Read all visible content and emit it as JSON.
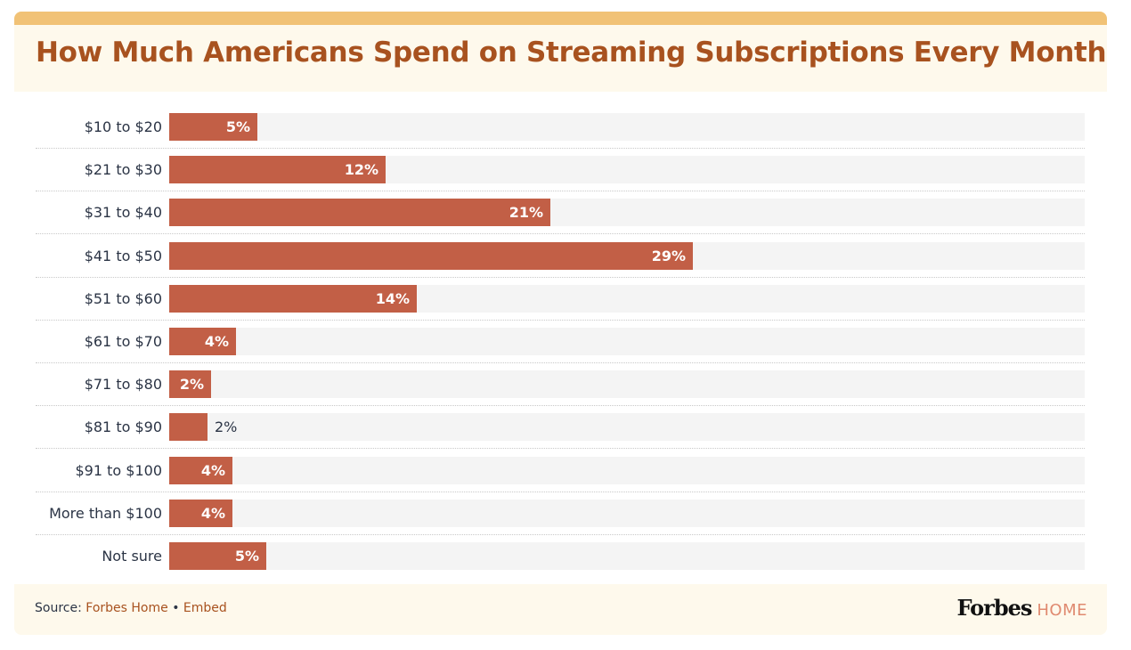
{
  "chart_data": {
    "type": "bar",
    "orientation": "horizontal",
    "title": "How Much Americans Spend on Streaming Subscriptions Every Month",
    "xlabel": "",
    "ylabel": "",
    "unit": "%",
    "xlim": [
      0,
      50.7
    ],
    "grid": false,
    "legend": "none",
    "categories": [
      "$10 to $20",
      "$21 to $30",
      "$31 to $40",
      "$41 to $50",
      "$51 to $60",
      "$61 to $70",
      "$71 to $80",
      "$81 to $90",
      "$91 to $100",
      "More than $100",
      "Not sure"
    ],
    "values": [
      4.9,
      12.0,
      21.1,
      29.0,
      13.7,
      3.7,
      2.3,
      2.1,
      3.5,
      3.5,
      5.4
    ],
    "labels": [
      "5%",
      "12%",
      "21%",
      "29%",
      "14%",
      "4%",
      "2%",
      "2%",
      "4%",
      "4%",
      "5%"
    ]
  },
  "colors": {
    "bar": "#c25f46",
    "track": "#f4f4f4",
    "title": "#a8521f",
    "header_band": "#f1c276",
    "panel_bg": "#fef9ec"
  },
  "footer": {
    "source_prefix": "Source:",
    "source_link": "Forbes Home",
    "separator": "•",
    "embed_link": "Embed",
    "brand_name": "Forbes",
    "brand_suffix": "HOME"
  }
}
